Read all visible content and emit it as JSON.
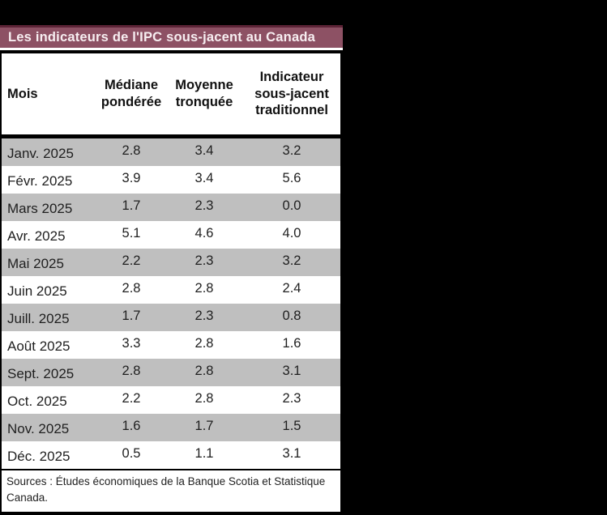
{
  "table": {
    "title": "Les indicateurs de l'IPC sous-jacent au Canada",
    "columns": [
      "Mois",
      "Médiane pondérée",
      "Moyenne tronquée",
      "Indicateur sous-jacent traditionnel"
    ],
    "rows": [
      {
        "month": "Janv. 2025",
        "values": [
          "2.8",
          "3.4",
          "3.2"
        ]
      },
      {
        "month": "Févr. 2025",
        "values": [
          "3.9",
          "3.4",
          "5.6"
        ]
      },
      {
        "month": "Mars 2025",
        "values": [
          "1.7",
          "2.3",
          "0.0"
        ]
      },
      {
        "month": "Avr. 2025",
        "values": [
          "5.1",
          "4.6",
          "4.0"
        ]
      },
      {
        "month": "Mai 2025",
        "values": [
          "2.2",
          "2.3",
          "3.2"
        ]
      },
      {
        "month": "Juin 2025",
        "values": [
          "2.8",
          "2.8",
          "2.4"
        ]
      },
      {
        "month": "Juill. 2025",
        "values": [
          "1.7",
          "2.3",
          "0.8"
        ]
      },
      {
        "month": "Août 2025",
        "values": [
          "3.3",
          "2.8",
          "1.6"
        ]
      },
      {
        "month": "Sept. 2025",
        "values": [
          "2.8",
          "2.8",
          "3.1"
        ]
      },
      {
        "month": "Oct. 2025",
        "values": [
          "2.2",
          "2.8",
          "2.3"
        ]
      },
      {
        "month": "Nov. 2025",
        "values": [
          "1.6",
          "1.7",
          "1.5"
        ]
      },
      {
        "month": "Déc. 2025",
        "values": [
          "0.5",
          "1.1",
          "3.1"
        ]
      }
    ],
    "source": "Sources : Études économiques de la Banque Scotia et Statistique Canada."
  },
  "colors": {
    "page_background": "#000000",
    "banner": "#8d5164",
    "banner_top_edge": "#5c2336",
    "banner_text": "#f7eef1",
    "row_stripe": "#bfbfbf",
    "row_plain": "#ffffff",
    "text": "#1f1f1f"
  },
  "chart_data": {
    "type": "table",
    "title": "Les indicateurs de l'IPC sous-jacent au Canada",
    "categories": [
      "Janv. 2025",
      "Févr. 2025",
      "Mars 2025",
      "Avr. 2025",
      "Mai 2025",
      "Juin 2025",
      "Juill. 2025",
      "Août 2025",
      "Sept. 2025",
      "Oct. 2025",
      "Nov. 2025",
      "Déc. 2025"
    ],
    "series": [
      {
        "name": "Médiane pondérée",
        "values": [
          2.8,
          3.9,
          1.7,
          5.1,
          2.2,
          2.8,
          1.7,
          3.3,
          2.8,
          2.2,
          1.6,
          0.5
        ]
      },
      {
        "name": "Moyenne tronquée",
        "values": [
          3.4,
          3.4,
          2.3,
          4.6,
          2.3,
          2.8,
          2.3,
          2.8,
          2.8,
          2.8,
          1.7,
          1.1
        ]
      },
      {
        "name": "Indicateur sous-jacent traditionnel",
        "values": [
          3.2,
          5.6,
          0.0,
          4.0,
          3.2,
          2.4,
          0.8,
          1.6,
          3.1,
          2.3,
          1.5,
          3.1
        ]
      }
    ],
    "source": "Sources : Études économiques de la Banque Scotia et Statistique Canada."
  }
}
